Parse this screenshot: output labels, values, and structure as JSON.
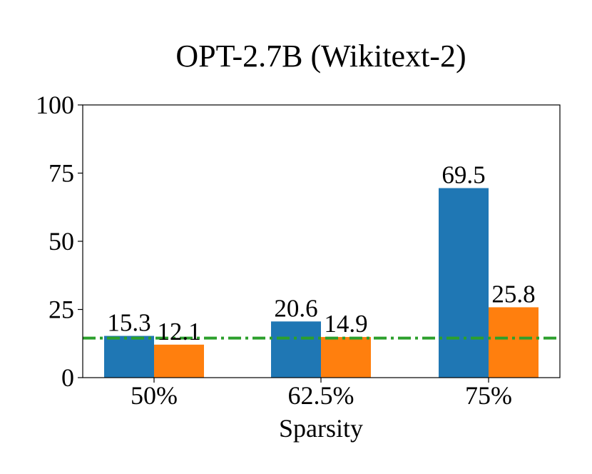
{
  "chart_data": {
    "type": "bar",
    "title": "OPT-2.7B (Wikitext-2)",
    "xlabel": "Sparsity",
    "ylabel": "",
    "categories": [
      "50%",
      "62.5%",
      "75%"
    ],
    "series": [
      {
        "values": [
          15.3,
          20.6,
          69.5
        ],
        "labels": [
          "15.3",
          "20.6",
          "69.5"
        ],
        "color": "#1f77b4"
      },
      {
        "values": [
          12.1,
          14.9,
          25.8
        ],
        "labels": [
          "12.1",
          "14.9",
          "25.8"
        ],
        "color": "#ff7f0e"
      }
    ],
    "reference_line": {
      "value": 14.5,
      "color": "#2ca02c",
      "style": "dash-dot"
    },
    "ylim": [
      0,
      100
    ],
    "yticks": [
      "0",
      "25",
      "50",
      "75",
      "100"
    ],
    "grid": false,
    "legend": "none"
  }
}
